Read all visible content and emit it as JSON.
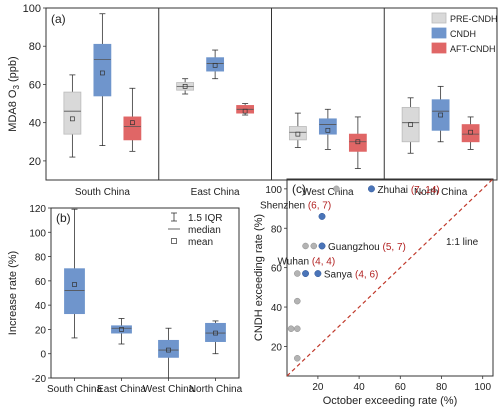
{
  "chart_data": [
    {
      "panel": "(a)",
      "type": "boxplot",
      "ylabel_parts": [
        "MDA8 O",
        "3",
        " (ppb)"
      ],
      "yticks": [
        20,
        40,
        60,
        80,
        100
      ],
      "ylim": [
        10,
        100
      ],
      "legend": {
        "placement": "top-right",
        "items": [
          {
            "name": "PRE-CNDH",
            "color": "#d9d9d9"
          },
          {
            "name": "CNDH",
            "color": "#6f95cc"
          },
          {
            "name": "AFT-CNDH",
            "color": "#e06666"
          }
        ]
      },
      "regions": [
        {
          "name": "South China",
          "boxes": [
            {
              "series": "PRE-CNDH",
              "whisker_low": 22,
              "q1": 34,
              "median": 46,
              "q3": 56,
              "whisker_high": 65,
              "mean": 42
            },
            {
              "series": "CNDH",
              "whisker_low": 28,
              "q1": 54,
              "median": 73,
              "q3": 81,
              "whisker_high": 97,
              "mean": 66
            },
            {
              "series": "AFT-CNDH",
              "whisker_low": 25,
              "q1": 31,
              "median": 38,
              "q3": 43,
              "whisker_high": 58,
              "mean": 40
            }
          ]
        },
        {
          "name": "East China",
          "boxes": [
            {
              "series": "PRE-CNDH",
              "whisker_low": 55,
              "q1": 57,
              "median": 59,
              "q3": 61,
              "whisker_high": 63,
              "mean": 59
            },
            {
              "series": "CNDH",
              "whisker_low": 63,
              "q1": 67,
              "median": 71,
              "q3": 74,
              "whisker_high": 78,
              "mean": 70
            },
            {
              "series": "AFT-CNDH",
              "whisker_low": 44,
              "q1": 45,
              "median": 47,
              "q3": 49,
              "whisker_high": 50,
              "mean": 46
            }
          ]
        },
        {
          "name": "West China",
          "boxes": [
            {
              "series": "PRE-CNDH",
              "whisker_low": 27,
              "q1": 31,
              "median": 35,
              "q3": 38,
              "whisker_high": 45,
              "mean": 34
            },
            {
              "series": "CNDH",
              "whisker_low": 26,
              "q1": 34,
              "median": 39,
              "q3": 42,
              "whisker_high": 47,
              "mean": 36
            },
            {
              "series": "AFT-CNDH",
              "whisker_low": 16,
              "q1": 25,
              "median": 30,
              "q3": 34,
              "whisker_high": 43,
              "mean": 30
            }
          ]
        },
        {
          "name": "North China",
          "boxes": [
            {
              "series": "PRE-CNDH",
              "whisker_low": 24,
              "q1": 30,
              "median": 40,
              "q3": 48,
              "whisker_high": 53,
              "mean": 39
            },
            {
              "series": "CNDH",
              "whisker_low": 30,
              "q1": 36,
              "median": 46,
              "q3": 52,
              "whisker_high": 59,
              "mean": 44
            },
            {
              "series": "AFT-CNDH",
              "whisker_low": 26,
              "q1": 30,
              "median": 34,
              "q3": 39,
              "whisker_high": 43,
              "mean": 35
            }
          ]
        }
      ]
    },
    {
      "panel": "(b)",
      "type": "boxplot",
      "ylabel": "Increase rate (%)",
      "yticks": [
        -20,
        0,
        20,
        40,
        60,
        80,
        100,
        120
      ],
      "ylim": [
        -20,
        120
      ],
      "legend": {
        "placement": "top-right",
        "items": [
          {
            "symbol": "whisker",
            "label": "1.5 IQR"
          },
          {
            "symbol": "line",
            "label": "median"
          },
          {
            "symbol": "square",
            "label": "mean"
          }
        ]
      },
      "color": "#6f95cc",
      "categories": [
        "South China",
        "East China",
        "West China",
        "North China"
      ],
      "boxes": [
        {
          "whisker_low": 13,
          "q1": 33,
          "median": 52,
          "q3": 70,
          "whisker_high": 119,
          "mean": 57
        },
        {
          "whisker_low": 8,
          "q1": 17,
          "median": 21,
          "q3": 23,
          "whisker_high": 29,
          "mean": 20
        },
        {
          "whisker_low": -20,
          "q1": -3,
          "median": 3,
          "q3": 11,
          "whisker_high": 21,
          "mean": 3
        },
        {
          "whisker_low": 0,
          "q1": 10,
          "median": 17,
          "q3": 25,
          "whisker_high": 27,
          "mean": 17
        }
      ]
    },
    {
      "panel": "(c)",
      "type": "scatter",
      "xlabel": "October exceeding rate (%)",
      "ylabel": "CNDH exceeding rate (%)",
      "xticks": [
        20,
        40,
        60,
        80,
        100
      ],
      "yticks": [
        20,
        40,
        60,
        80,
        100
      ],
      "xlim": [
        5,
        105
      ],
      "ylim": [
        5,
        105
      ],
      "reference_line": {
        "label": "1:1 line",
        "color": "#c0392b"
      },
      "colors": {
        "highlight": "#4a74b8",
        "other": "#b3b3b3",
        "annotation": "#b22222"
      },
      "points": [
        {
          "x": 46,
          "y": 100,
          "highlight": true,
          "name": "Zhuhai",
          "rank": "(7, 14)"
        },
        {
          "x": 22,
          "y": 86,
          "highlight": true,
          "name": "Shenzhen",
          "rank": "(6, 7)"
        },
        {
          "x": 22,
          "y": 71,
          "highlight": true,
          "name": "Guangzhou",
          "rank": "(5, 7)"
        },
        {
          "x": 14,
          "y": 57,
          "highlight": true,
          "name": "Wuhan",
          "rank": "(4, 4)"
        },
        {
          "x": 20,
          "y": 57,
          "highlight": true,
          "name": "Sanya",
          "rank": "(4, 6)"
        },
        {
          "x": 29,
          "y": 100,
          "highlight": false
        },
        {
          "x": 14,
          "y": 71,
          "highlight": false
        },
        {
          "x": 18,
          "y": 71,
          "highlight": false
        },
        {
          "x": 10,
          "y": 57,
          "highlight": false
        },
        {
          "x": 10,
          "y": 43,
          "highlight": false
        },
        {
          "x": 7,
          "y": 29,
          "highlight": false
        },
        {
          "x": 10,
          "y": 29,
          "highlight": false
        },
        {
          "x": 10,
          "y": 14,
          "highlight": false
        }
      ]
    }
  ]
}
